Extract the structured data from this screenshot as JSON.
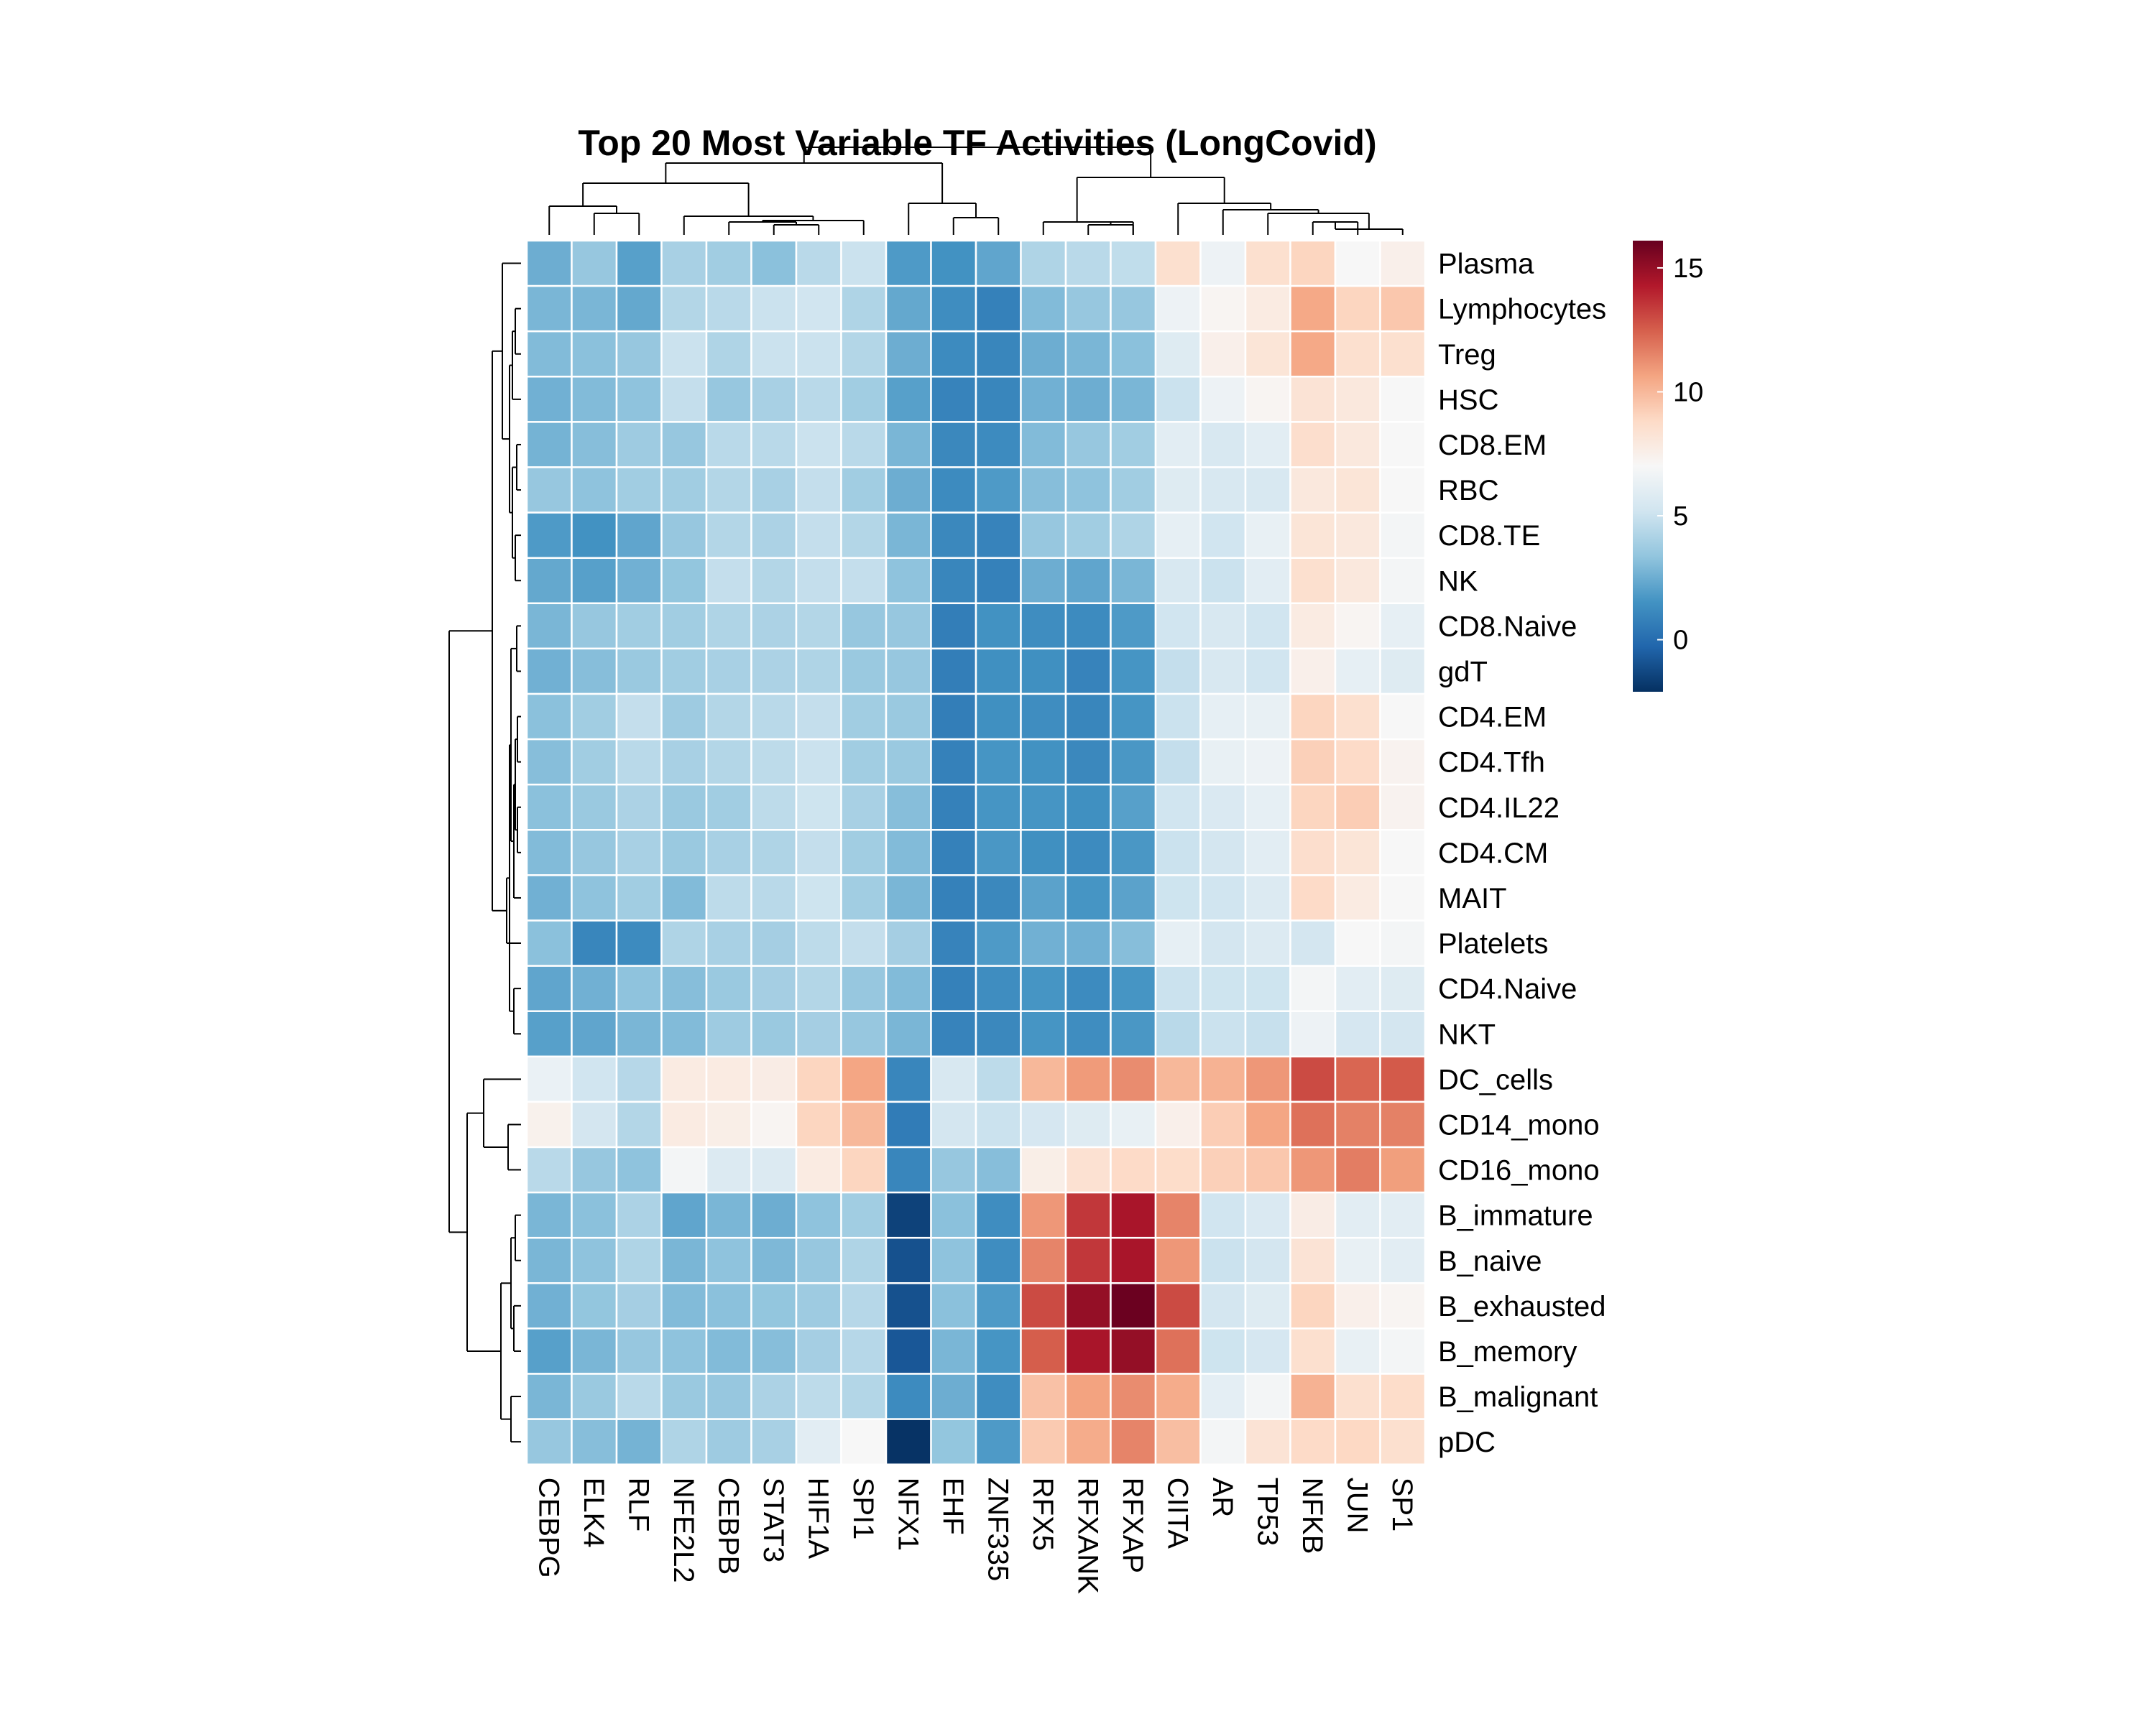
{
  "chart_data": {
    "type": "heatmap",
    "title": "Top 20 Most Variable TF Activities (LongCovid)",
    "columns": [
      "CEBPG",
      "ELK4",
      "RLF",
      "NFE2L2",
      "CEBPB",
      "STAT3",
      "HIF1A",
      "SPI1",
      "NFX1",
      "EHF",
      "ZNF335",
      "RFX5",
      "RFXANK",
      "RFXAP",
      "CIITA",
      "AR",
      "TP53",
      "NFKB",
      "JUN",
      "SP1"
    ],
    "rows": [
      "Plasma",
      "Lymphocytes",
      "Treg",
      "HSC",
      "CD8.EM",
      "RBC",
      "CD8.TE",
      "NK",
      "CD8.Naive",
      "gdT",
      "CD4.EM",
      "CD4.Tfh",
      "CD4.IL22",
      "CD4.CM",
      "MAIT",
      "Platelets",
      "CD4.Naive",
      "NKT",
      "DC_cells",
      "CD14_mono",
      "CD16_mono",
      "B_immature",
      "B_naive",
      "B_exhausted",
      "B_memory",
      "B_malignant",
      "pDC"
    ],
    "values": [
      [
        2.5,
        3.5,
        2.0,
        4.0,
        3.8,
        3.2,
        4.5,
        5.0,
        1.8,
        1.5,
        2.2,
        4.2,
        4.5,
        4.7,
        8.5,
        6.5,
        8.5,
        9.0,
        7.0,
        7.5
      ],
      [
        2.8,
        2.8,
        2.3,
        4.3,
        4.5,
        5.0,
        5.2,
        4.2,
        2.3,
        1.3,
        0.8,
        3.0,
        3.5,
        3.5,
        6.5,
        7.2,
        7.8,
        10.5,
        9.0,
        9.5
      ],
      [
        3.0,
        3.2,
        3.5,
        5.0,
        4.2,
        5.0,
        5.0,
        4.3,
        2.5,
        1.2,
        1.0,
        2.5,
        2.8,
        3.2,
        5.8,
        7.5,
        8.2,
        10.5,
        8.5,
        8.5
      ],
      [
        2.6,
        3.0,
        3.3,
        4.8,
        3.5,
        4.0,
        4.5,
        3.8,
        2.0,
        0.9,
        1.0,
        2.6,
        2.5,
        2.8,
        5.0,
        6.5,
        7.2,
        8.3,
        8.0,
        7.0
      ],
      [
        2.7,
        3.1,
        3.7,
        3.5,
        4.5,
        4.5,
        5.0,
        4.5,
        2.8,
        1.1,
        1.2,
        3.0,
        3.5,
        3.8,
        6.0,
        5.5,
        6.0,
        8.6,
        8.0,
        7.0
      ],
      [
        3.5,
        3.3,
        3.8,
        3.8,
        4.3,
        4.0,
        4.8,
        3.8,
        2.5,
        1.2,
        1.8,
        3.1,
        3.3,
        3.8,
        5.8,
        5.5,
        5.5,
        8.0,
        8.2,
        7.0
      ],
      [
        1.8,
        1.5,
        2.2,
        3.5,
        4.3,
        4.1,
        4.8,
        4.3,
        2.8,
        1.1,
        0.9,
        3.5,
        3.8,
        4.2,
        6.2,
        5.2,
        6.3,
        8.2,
        8.0,
        6.8
      ],
      [
        2.3,
        2.0,
        2.6,
        3.4,
        4.8,
        4.3,
        4.8,
        4.8,
        3.3,
        1.0,
        0.8,
        2.5,
        2.2,
        2.8,
        5.5,
        5.0,
        6.0,
        8.5,
        8.0,
        6.8
      ],
      [
        2.8,
        3.5,
        3.8,
        3.8,
        4.2,
        4.1,
        4.3,
        3.5,
        3.5,
        0.7,
        1.5,
        1.3,
        1.2,
        1.8,
        5.2,
        5.5,
        5.2,
        7.8,
        7.2,
        6.2
      ],
      [
        2.6,
        3.1,
        3.6,
        3.8,
        4.0,
        4.1,
        4.2,
        3.6,
        3.5,
        0.7,
        1.4,
        1.4,
        0.9,
        1.6,
        4.8,
        5.5,
        5.2,
        7.5,
        6.2,
        5.8
      ],
      [
        3.2,
        3.8,
        4.8,
        3.7,
        4.3,
        4.5,
        4.8,
        3.8,
        3.6,
        0.7,
        1.4,
        1.3,
        1.0,
        1.6,
        5.0,
        6.2,
        6.3,
        9.0,
        8.5,
        7.0
      ],
      [
        3.1,
        3.8,
        4.5,
        4.0,
        4.3,
        4.6,
        5.0,
        3.8,
        3.6,
        0.8,
        1.6,
        1.5,
        1.1,
        1.7,
        4.8,
        6.3,
        6.5,
        9.2,
        8.8,
        7.3
      ],
      [
        3.2,
        3.6,
        4.1,
        3.6,
        3.8,
        4.6,
        5.1,
        4.0,
        3.1,
        0.8,
        1.6,
        1.6,
        1.4,
        2.0,
        5.2,
        5.6,
        6.2,
        9.0,
        9.3,
        7.3
      ],
      [
        3.0,
        3.5,
        4.0,
        3.6,
        4.0,
        4.2,
        4.8,
        3.8,
        3.0,
        0.8,
        1.7,
        1.4,
        1.2,
        1.7,
        5.0,
        5.3,
        6.0,
        8.6,
        8.2,
        7.0
      ],
      [
        2.6,
        3.3,
        3.8,
        3.0,
        4.6,
        4.5,
        5.1,
        3.8,
        2.8,
        0.8,
        1.1,
        2.1,
        1.6,
        2.1,
        5.1,
        5.2,
        5.7,
        8.8,
        7.8,
        7.0
      ],
      [
        3.2,
        1.0,
        1.2,
        4.2,
        4.0,
        3.9,
        4.6,
        4.8,
        3.9,
        0.9,
        1.8,
        2.6,
        2.6,
        3.1,
        6.2,
        5.3,
        5.7,
        5.3,
        7.0,
        6.8
      ],
      [
        2.2,
        2.6,
        3.3,
        3.1,
        3.6,
        3.9,
        4.3,
        3.5,
        3.0,
        0.8,
        1.3,
        1.6,
        1.2,
        1.6,
        5.0,
        5.1,
        5.1,
        6.8,
        6.0,
        5.8
      ],
      [
        2.0,
        2.2,
        2.8,
        3.0,
        3.7,
        3.6,
        3.9,
        3.5,
        2.8,
        0.9,
        1.1,
        1.6,
        1.3,
        1.7,
        4.5,
        5.0,
        4.9,
        6.5,
        5.4,
        5.3
      ],
      [
        6.4,
        5.2,
        4.4,
        7.8,
        7.8,
        7.7,
        9.0,
        10.6,
        1.0,
        5.5,
        4.6,
        10.0,
        10.9,
        11.3,
        10.0,
        10.2,
        11.0,
        13.0,
        12.3,
        12.6
      ],
      [
        7.4,
        5.3,
        4.3,
        7.8,
        7.6,
        7.2,
        9.0,
        10.0,
        0.6,
        5.3,
        5.0,
        5.4,
        5.8,
        6.3,
        7.5,
        9.3,
        10.6,
        12.0,
        11.6,
        11.6
      ],
      [
        4.5,
        3.5,
        3.3,
        6.8,
        5.7,
        5.7,
        7.8,
        9.0,
        1.0,
        3.5,
        3.1,
        7.6,
        8.4,
        8.8,
        8.7,
        9.2,
        9.5,
        11.0,
        11.7,
        10.8
      ],
      [
        2.8,
        3.2,
        4.1,
        2.2,
        2.8,
        2.5,
        3.3,
        3.8,
        -1.5,
        3.2,
        1.3,
        11.0,
        13.5,
        14.5,
        11.5,
        5.2,
        5.6,
        7.7,
        6.0,
        6.0
      ],
      [
        2.8,
        3.3,
        4.2,
        2.8,
        3.3,
        2.9,
        3.5,
        4.2,
        -1.0,
        3.3,
        1.3,
        11.5,
        13.5,
        14.5,
        11.0,
        5.0,
        5.3,
        8.3,
        6.3,
        6.0
      ],
      [
        2.6,
        3.4,
        3.9,
        3.0,
        3.2,
        3.4,
        3.7,
        4.4,
        -1.0,
        3.2,
        1.8,
        13.0,
        15.0,
        16.0,
        13.0,
        5.3,
        5.8,
        9.0,
        7.5,
        7.2
      ],
      [
        2.0,
        2.8,
        3.5,
        3.3,
        3.0,
        3.1,
        3.9,
        4.4,
        -0.8,
        2.8,
        1.6,
        12.5,
        14.5,
        15.0,
        12.0,
        5.1,
        5.4,
        8.5,
        6.3,
        6.8
      ],
      [
        2.8,
        3.6,
        4.5,
        3.6,
        3.5,
        4.1,
        4.6,
        4.3,
        1.2,
        2.5,
        1.3,
        9.7,
        10.7,
        11.3,
        10.4,
        6.1,
        6.8,
        10.2,
        8.5,
        8.7
      ],
      [
        3.5,
        3.1,
        2.7,
        4.2,
        3.7,
        4.0,
        6.0,
        7.0,
        -2.0,
        3.4,
        1.8,
        9.4,
        10.4,
        11.5,
        9.8,
        6.8,
        8.3,
        8.8,
        8.9,
        8.5
      ]
    ],
    "legend": {
      "ticks": [
        15,
        10,
        5,
        0
      ],
      "range": [
        -2.1,
        16.1
      ]
    },
    "palette": [
      "#053061",
      "#2166ac",
      "#4393c3",
      "#92c5de",
      "#d1e5f0",
      "#f7f7f7",
      "#fddbc7",
      "#f4a582",
      "#d6604d",
      "#b2182b",
      "#67001f"
    ],
    "col_dendrogram": [
      [
        0,
        1
      ],
      [
        2,
        3
      ],
      [
        4,
        5
      ],
      [
        6,
        7
      ],
      [
        8,
        9
      ],
      [
        10,
        11
      ],
      [
        12,
        13
      ],
      [
        14,
        15
      ],
      [
        16,
        17
      ],
      [
        18,
        19
      ]
    ],
    "row_clusters": 2
  }
}
